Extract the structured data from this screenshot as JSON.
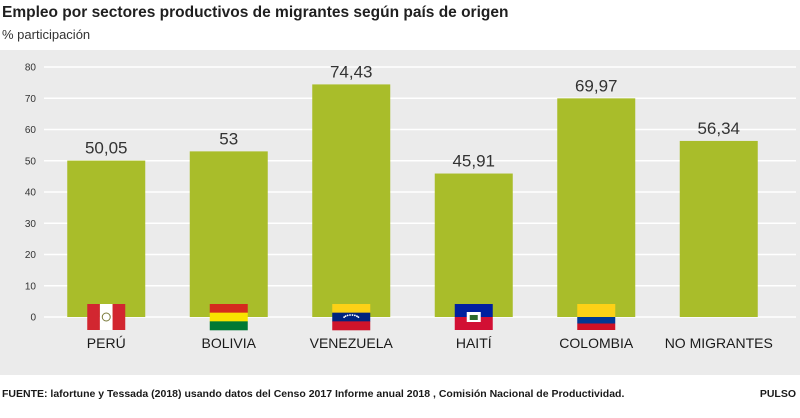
{
  "title": "Empleo por sectores productivos de migrantes según país de origen",
  "subtitle": "% participación",
  "footer": {
    "source": "FUENTE: lafortune y Tessada (2018) usando datos del Censo 2017 Informe anual 2018 , Comisión Nacional de Productividad.",
    "brand": "PULSO"
  },
  "colors": {
    "bar": "#a9bd2a",
    "panel": "#ebebeb",
    "grid": "#ffffff"
  },
  "chart_data": {
    "type": "bar",
    "title": "Empleo por sectores productivos de migrantes según país de origen",
    "ylabel": "% participación",
    "ylim": [
      0,
      80
    ],
    "yticks": [
      "0",
      "10",
      "20",
      "30",
      "40",
      "50",
      "60",
      "70",
      "80"
    ],
    "grid": true,
    "categories": [
      "PERÚ",
      "BOLIVIA",
      "VENEZUELA",
      "HAITÍ",
      "COLOMBIA",
      "NO MIGRANTES"
    ],
    "values": [
      50.05,
      53,
      74.43,
      45.91,
      69.97,
      56.34
    ],
    "value_labels": [
      "50,05",
      "53",
      "74,43",
      "45,91",
      "69,97",
      "56,34"
    ],
    "flags": [
      "peru-flag-icon",
      "bolivia-flag-icon",
      "venezuela-flag-icon",
      "haiti-flag-icon",
      "colombia-flag-icon",
      ""
    ]
  }
}
